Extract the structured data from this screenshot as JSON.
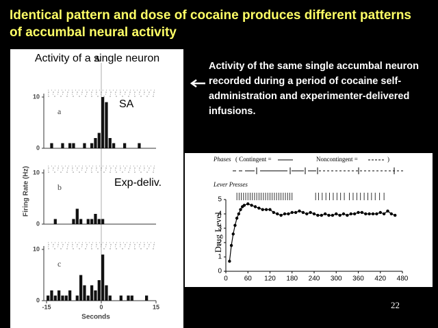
{
  "title": "Identical pattern and dose of cocaine produces different patterns of accumbal neural activity",
  "left_panel": {
    "caption": "Activity of a single neuron",
    "figure_label": "A",
    "y_axis_label": "Firing Rate (Hz)",
    "x_axis_label": "Seconds",
    "xlim": [
      -15,
      15
    ],
    "xticks": [
      -15,
      0,
      15
    ],
    "annotations": [
      "SA",
      "Exp-deliv."
    ],
    "panels": [
      {
        "label": "a",
        "ylim": [
          0,
          10
        ],
        "yticks": [
          0,
          10
        ],
        "values": [
          0,
          1,
          0,
          0,
          1,
          0,
          1,
          1,
          0,
          0,
          1,
          0,
          1,
          2,
          3,
          10,
          9,
          2,
          1,
          0,
          0,
          1,
          0,
          0,
          0,
          1,
          0,
          0,
          0,
          0
        ]
      },
      {
        "label": "b",
        "ylim": [
          0,
          10
        ],
        "yticks": [
          0,
          10
        ],
        "values": [
          0,
          0,
          1,
          0,
          0,
          0,
          0,
          1,
          3,
          1,
          0,
          1,
          1,
          2,
          1,
          1,
          0,
          0,
          0,
          0,
          0,
          0,
          0,
          0,
          0,
          0,
          0,
          0,
          0,
          0
        ]
      },
      {
        "label": "c",
        "ylim": [
          0,
          10
        ],
        "yticks": [
          0,
          10
        ],
        "values": [
          1,
          2,
          1,
          2,
          1,
          1,
          2,
          0,
          1,
          5,
          3,
          1,
          3,
          2,
          4,
          9,
          3,
          1,
          0,
          0,
          1,
          0,
          1,
          1,
          0,
          0,
          0,
          1,
          0,
          0
        ]
      }
    ]
  },
  "description": "Activity of the same single accumbal neuron recorded during a period of cocaine self-administration and experimenter-delivered infusions.",
  "drug_chart": {
    "type": "line",
    "y_axis_label": "Drug Level",
    "phases_label": "Phases",
    "legend_contingent": "( Contingent =",
    "legend_noncontingent": "Noncontingent =",
    "legend_close": ")",
    "lever_presses_label": "Lever Presses",
    "xlim": [
      0,
      480
    ],
    "xticks": [
      0,
      60,
      120,
      180,
      240,
      300,
      360,
      420,
      480
    ],
    "ylim": [
      0,
      5
    ],
    "yticks": [
      0,
      1,
      2,
      3,
      4,
      5
    ],
    "lever_presses": [
      30,
      36,
      42,
      48,
      54,
      60,
      66,
      72,
      78,
      84,
      90,
      96,
      102,
      108,
      114,
      120,
      126,
      132,
      138,
      144,
      150,
      156,
      162,
      168,
      174,
      180,
      244,
      252,
      262,
      272,
      282,
      292,
      302,
      312,
      322,
      336,
      346,
      356,
      366,
      376,
      386,
      396,
      406,
      418,
      430
    ],
    "x": [
      10,
      15,
      20,
      25,
      30,
      35,
      40,
      45,
      50,
      60,
      70,
      80,
      90,
      100,
      110,
      120,
      130,
      140,
      150,
      160,
      170,
      180,
      190,
      200,
      210,
      220,
      230,
      240,
      250,
      260,
      270,
      280,
      290,
      300,
      310,
      320,
      330,
      340,
      350,
      360,
      370,
      380,
      390,
      400,
      410,
      420,
      430,
      440,
      450,
      460
    ],
    "values": [
      0.7,
      1.8,
      2.6,
      3.2,
      3.7,
      4.0,
      4.3,
      4.5,
      4.6,
      4.7,
      4.6,
      4.5,
      4.4,
      4.3,
      4.3,
      4.3,
      4.1,
      4.0,
      3.9,
      4.0,
      4.0,
      4.1,
      4.1,
      4.2,
      4.1,
      4.0,
      4.1,
      4.0,
      3.9,
      3.9,
      4.0,
      3.9,
      3.9,
      4.0,
      3.9,
      4.0,
      3.9,
      4.0,
      4.0,
      4.1,
      4.1,
      4.0,
      4.0,
      4.0,
      4.0,
      4.1,
      4.0,
      4.2,
      4.0,
      3.9
    ]
  },
  "page_number": 22
}
